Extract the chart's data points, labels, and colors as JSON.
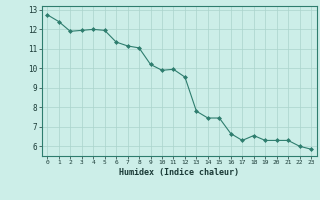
{
  "x": [
    0,
    1,
    2,
    3,
    4,
    5,
    6,
    7,
    8,
    9,
    10,
    11,
    12,
    13,
    14,
    15,
    16,
    17,
    18,
    19,
    20,
    21,
    22,
    23
  ],
  "y": [
    12.75,
    12.4,
    11.9,
    11.95,
    12.0,
    11.95,
    11.35,
    11.15,
    11.05,
    10.2,
    9.9,
    9.95,
    9.55,
    7.8,
    7.45,
    7.45,
    6.65,
    6.3,
    6.55,
    6.3,
    6.3,
    6.3,
    6.0,
    5.85
  ],
  "xlabel": "Humidex (Indice chaleur)",
  "xlim": [
    -0.5,
    23.5
  ],
  "ylim": [
    5.5,
    13.2
  ],
  "yticks": [
    6,
    7,
    8,
    9,
    10,
    11,
    12,
    13
  ],
  "xticks": [
    0,
    1,
    2,
    3,
    4,
    5,
    6,
    7,
    8,
    9,
    10,
    11,
    12,
    13,
    14,
    15,
    16,
    17,
    18,
    19,
    20,
    21,
    22,
    23
  ],
  "line_color": "#2e7d6e",
  "marker_color": "#2e7d6e",
  "bg_color": "#cceee8",
  "grid_color": "#aad4cc",
  "tick_label_color": "#1a3a36",
  "xlabel_color": "#1a3a36",
  "spine_color": "#2e7d6e"
}
